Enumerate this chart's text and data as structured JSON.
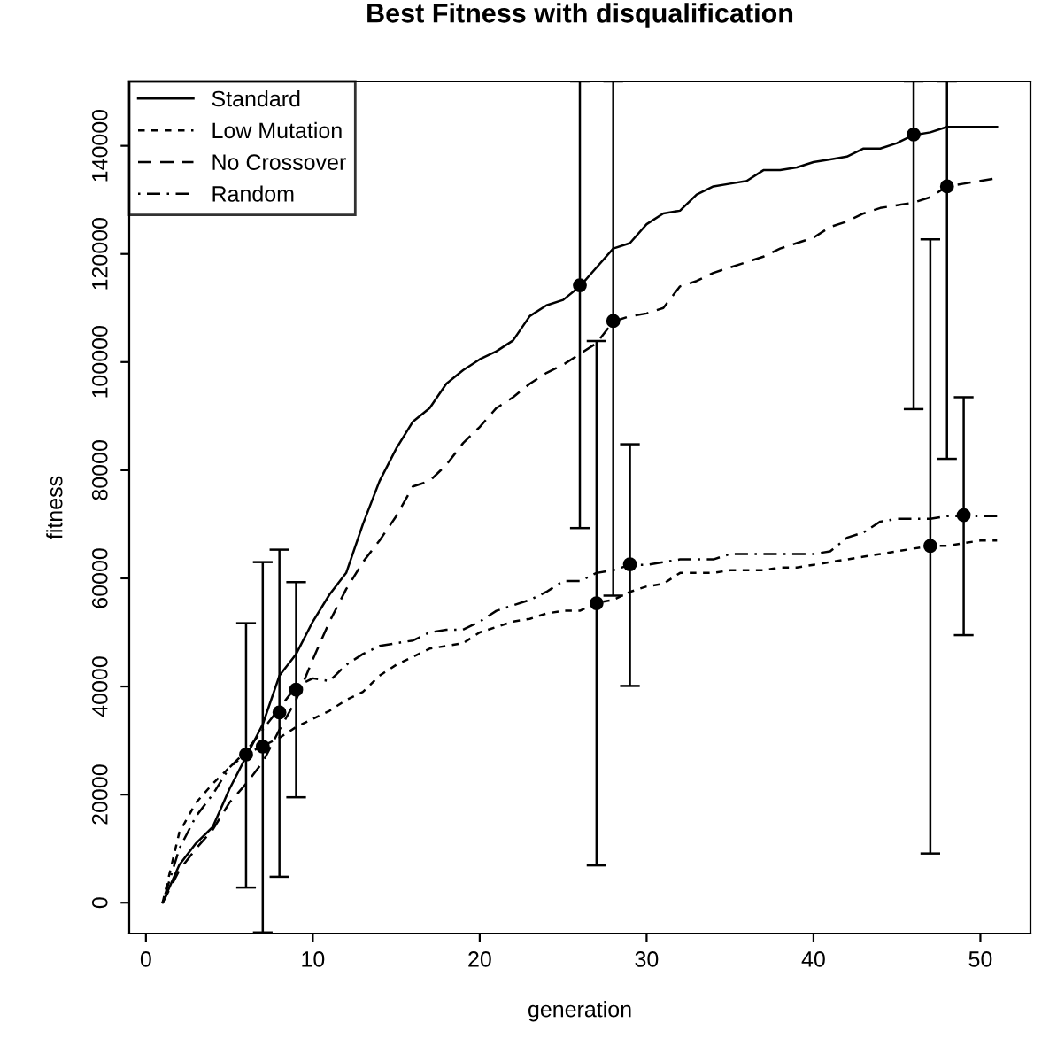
{
  "chart_data": {
    "type": "line",
    "title": "Best Fitness with disqualification",
    "xlabel": "generation",
    "ylabel": "fitness",
    "x": [
      1,
      2,
      3,
      4,
      5,
      6,
      7,
      8,
      9,
      10,
      11,
      12,
      13,
      14,
      15,
      16,
      17,
      18,
      19,
      20,
      21,
      22,
      23,
      24,
      25,
      26,
      27,
      28,
      29,
      30,
      31,
      32,
      33,
      34,
      35,
      36,
      37,
      38,
      39,
      40,
      41,
      42,
      43,
      44,
      45,
      46,
      47,
      48,
      49,
      50,
      51
    ],
    "series": [
      {
        "name": "Standard",
        "color": "#000000",
        "line_style": "solid",
        "values": [
          0,
          7000,
          11000,
          14000,
          21000,
          27000,
          33000,
          42000,
          46000,
          52000,
          57000,
          61000,
          70000,
          78000,
          84000,
          89000,
          91500,
          96000,
          98500,
          100500,
          102000,
          104000,
          108500,
          110500,
          111500,
          114000,
          117500,
          121000,
          122000,
          125500,
          127500,
          128000,
          131000,
          132500,
          133000,
          133500,
          135500,
          135500,
          136000,
          137000,
          137500,
          138000,
          139500,
          139500,
          140500,
          142000,
          142500,
          143500,
          143500,
          143500,
          143500
        ]
      },
      {
        "name": "Low Mutation",
        "color": "#000000",
        "line_style": "dotted",
        "values": [
          0,
          13000,
          18500,
          22000,
          25000,
          27500,
          29000,
          30500,
          32500,
          34000,
          35500,
          37500,
          39000,
          42000,
          44000,
          45500,
          47000,
          47500,
          48000,
          50000,
          51000,
          52000,
          52500,
          53500,
          54000,
          54000,
          55500,
          56000,
          57500,
          58500,
          59000,
          61000,
          61000,
          61000,
          61500,
          61500,
          61500,
          62000,
          62000,
          62500,
          63000,
          63500,
          64000,
          64500,
          65000,
          65500,
          66000,
          66000,
          66500,
          67000,
          67000
        ]
      },
      {
        "name": "No Crossover",
        "color": "#000000",
        "line_style": "dashed",
        "values": [
          0,
          6000,
          10000,
          13500,
          18500,
          22000,
          26000,
          32000,
          37500,
          45000,
          52000,
          58000,
          63000,
          67000,
          71500,
          77000,
          78000,
          81000,
          85000,
          88000,
          91500,
          93500,
          96000,
          98000,
          99500,
          101500,
          103500,
          107500,
          108500,
          109000,
          110000,
          114000,
          115000,
          116500,
          117500,
          118500,
          119500,
          121000,
          122000,
          123000,
          125000,
          126000,
          127500,
          128500,
          129000,
          129500,
          130500,
          132500,
          133000,
          133500,
          134000
        ]
      },
      {
        "name": "Random",
        "color": "#000000",
        "line_style": "dashdot",
        "values": [
          0,
          10000,
          16000,
          20000,
          25000,
          28000,
          32000,
          36000,
          40000,
          41500,
          41000,
          44000,
          46000,
          47500,
          48000,
          48500,
          50000,
          50500,
          50500,
          52000,
          54000,
          55000,
          56000,
          57500,
          59500,
          59500,
          61000,
          61500,
          62500,
          62500,
          63000,
          63500,
          63500,
          63500,
          64500,
          64500,
          64500,
          64500,
          64500,
          64500,
          65000,
          67500,
          68500,
          70500,
          71000,
          71000,
          71000,
          71500,
          71500,
          71500,
          71500
        ]
      },
      {
        "type": "scatter",
        "color": "#000000",
        "marker": "circle",
        "x": [
          6,
          26,
          46
        ],
        "values": [
          27400,
          114200,
          142100
        ],
        "errors": [
          [
            2800,
            51700
          ],
          [
            69300,
            151900
          ],
          [
            91300,
            151900
          ]
        ]
      },
      {
        "type": "scatter",
        "color": "#000000",
        "marker": "circle",
        "x": [
          7,
          27,
          47
        ],
        "values": [
          28900,
          55400,
          66000
        ],
        "errors": [
          [
            -5500,
            63000
          ],
          [
            6900,
            103900
          ],
          [
            9100,
            122700
          ]
        ]
      },
      {
        "type": "scatter",
        "color": "#000000",
        "marker": "circle",
        "x": [
          8,
          28,
          48
        ],
        "values": [
          35200,
          107600,
          132500
        ],
        "errors": [
          [
            4800,
            65300
          ],
          [
            56800,
            151900
          ],
          [
            82100,
            151900
          ]
        ]
      },
      {
        "type": "scatter",
        "color": "#000000",
        "marker": "circle",
        "x": [
          9,
          29,
          49
        ],
        "values": [
          39400,
          62600,
          71700
        ],
        "errors": [
          [
            19500,
            59300
          ],
          [
            40100,
            84800
          ],
          [
            49500,
            93500
          ]
        ]
      }
    ],
    "marker": "none",
    "xlim": [
      -1,
      53
    ],
    "ylim": [
      -5700,
      151900
    ],
    "xticks": [
      0,
      10,
      20,
      30,
      40,
      50
    ],
    "yticks": [
      0,
      20000,
      40000,
      60000,
      80000,
      100000,
      120000,
      140000
    ],
    "grid": false,
    "legend": "top left"
  }
}
